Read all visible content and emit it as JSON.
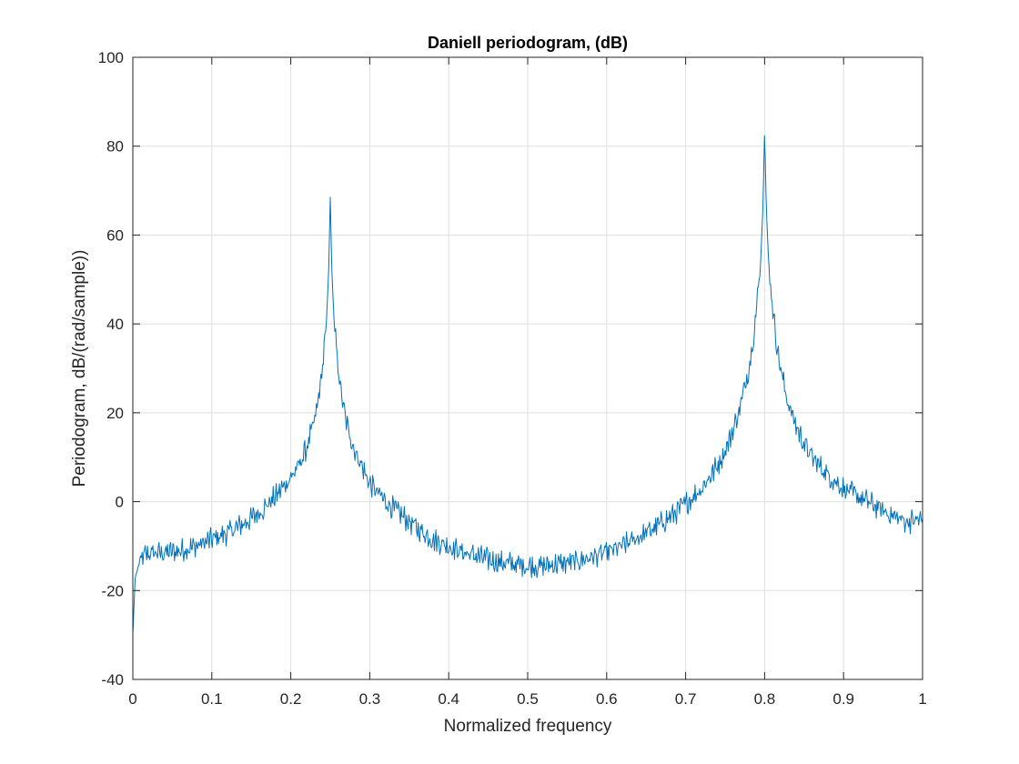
{
  "chart_data": {
    "type": "line",
    "title": "Daniell periodogram, (dB)",
    "xlabel": "Normalized frequency",
    "ylabel": "Periodogram, dB/(rad/sample))",
    "xlim": [
      0,
      1
    ],
    "ylim": [
      -40,
      100
    ],
    "xticks": [
      0,
      0.1,
      0.2,
      0.3,
      0.4,
      0.5,
      0.6,
      0.7,
      0.8,
      0.9,
      1
    ],
    "xtick_labels": [
      "0",
      "0.1",
      "0.2",
      "0.3",
      "0.4",
      "0.5",
      "0.6",
      "0.7",
      "0.8",
      "0.9",
      "1"
    ],
    "yticks": [
      -40,
      -20,
      0,
      20,
      40,
      60,
      80,
      100
    ],
    "ytick_labels": [
      "-40",
      "-20",
      "0",
      "20",
      "40",
      "60",
      "80",
      "100"
    ],
    "grid": true,
    "line_color": "#0072BD",
    "series": [
      {
        "x": [
          0,
          0.003,
          0.008,
          0.015,
          0.025,
          0.04,
          0.06,
          0.08,
          0.1,
          0.12,
          0.14,
          0.16,
          0.18,
          0.2,
          0.21,
          0.22,
          0.23,
          0.235,
          0.24,
          0.245,
          0.248,
          0.25,
          0.252,
          0.255,
          0.26,
          0.265,
          0.27,
          0.28,
          0.29,
          0.3,
          0.32,
          0.34,
          0.36,
          0.38,
          0.4,
          0.42,
          0.44,
          0.46,
          0.48,
          0.5,
          0.52,
          0.54,
          0.56,
          0.58,
          0.6,
          0.62,
          0.64,
          0.66,
          0.68,
          0.7,
          0.72,
          0.74,
          0.75,
          0.76,
          0.77,
          0.78,
          0.785,
          0.79,
          0.795,
          0.798,
          0.8,
          0.802,
          0.805,
          0.81,
          0.815,
          0.82,
          0.83,
          0.84,
          0.85,
          0.86,
          0.88,
          0.9,
          0.92,
          0.94,
          0.96,
          0.98,
          1
        ],
        "y": [
          -30,
          -17,
          -14,
          -12,
          -11.5,
          -11.5,
          -11,
          -10,
          -8.5,
          -7,
          -5,
          -2.5,
          1,
          5.5,
          8,
          12,
          18,
          23,
          30,
          40,
          52,
          68.5,
          52,
          40,
          30,
          23,
          18,
          12,
          8,
          4,
          0,
          -3,
          -6,
          -8.5,
          -10,
          -11.5,
          -12.5,
          -13.5,
          -14,
          -14.5,
          -14.5,
          -14,
          -13.5,
          -12.5,
          -11.5,
          -10,
          -8,
          -6,
          -3.5,
          -0.5,
          3,
          8,
          11.5,
          16,
          22,
          30,
          36,
          44,
          54,
          67,
          84,
          67,
          54,
          44,
          36,
          30,
          22,
          17,
          13,
          10,
          6,
          3,
          1,
          -1,
          -3,
          -4.5,
          -4
        ]
      }
    ]
  }
}
